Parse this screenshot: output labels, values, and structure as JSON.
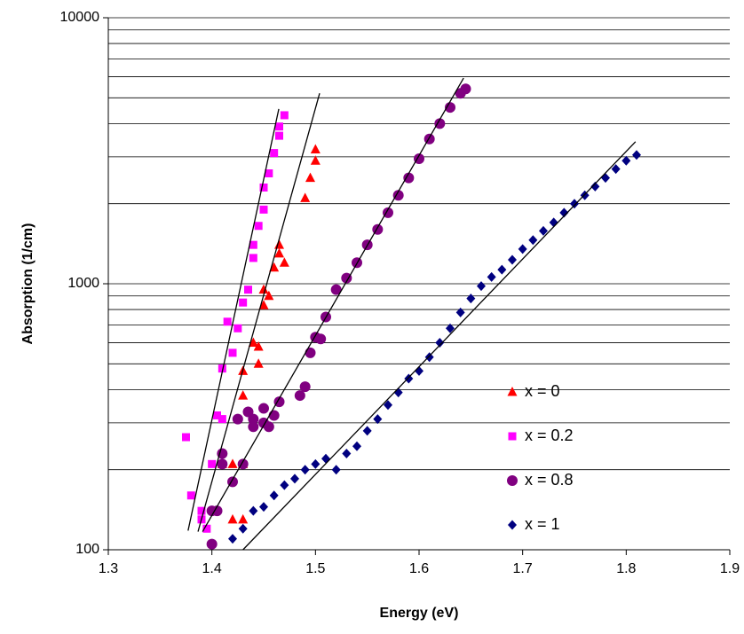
{
  "chart_data": {
    "type": "scatter",
    "x_label": "Energy (eV)",
    "y_label": "Absorption (1/cm)",
    "xlim": [
      1.3,
      1.9
    ],
    "xticks": [
      1.3,
      1.4,
      1.5,
      1.6,
      1.7,
      1.8,
      1.9
    ],
    "ylim": [
      100,
      10000
    ],
    "yticks": [
      100,
      1000,
      10000
    ],
    "log_y": true,
    "grid": true,
    "minor_grid": true,
    "legend_position": "lower right",
    "series": [
      {
        "name": "x = 0",
        "color": "#ff0000",
        "marker": "triangle",
        "x": [
          1.42,
          1.43,
          1.41,
          1.42,
          1.43,
          1.43,
          1.43,
          1.44,
          1.445,
          1.445,
          1.45,
          1.45,
          1.455,
          1.46,
          1.465,
          1.465,
          1.47,
          1.49,
          1.495,
          1.5,
          1.5
        ],
        "values": [
          130,
          130,
          210,
          210,
          210,
          380,
          470,
          600,
          580,
          500,
          830,
          950,
          900,
          1150,
          1300,
          1400,
          1200,
          2100,
          2500,
          2900,
          3200
        ]
      },
      {
        "name": "x = 0.2",
        "color": "#ff00ff",
        "marker": "square",
        "x": [
          1.375,
          1.38,
          1.39,
          1.395,
          1.39,
          1.4,
          1.405,
          1.41,
          1.41,
          1.415,
          1.42,
          1.425,
          1.43,
          1.435,
          1.44,
          1.44,
          1.445,
          1.45,
          1.45,
          1.455,
          1.46,
          1.465,
          1.465,
          1.47
        ],
        "values": [
          265,
          160,
          140,
          120,
          130,
          210,
          320,
          310,
          480,
          720,
          550,
          680,
          850,
          950,
          1250,
          1400,
          1650,
          1900,
          2300,
          2600,
          3100,
          3600,
          3900,
          4300
        ]
      },
      {
        "name": "x = 0.8",
        "color": "#800080",
        "marker": "circle",
        "x": [
          1.4,
          1.4,
          1.405,
          1.41,
          1.41,
          1.42,
          1.425,
          1.43,
          1.435,
          1.44,
          1.44,
          1.45,
          1.45,
          1.455,
          1.46,
          1.465,
          1.485,
          1.49,
          1.495,
          1.5,
          1.505,
          1.51,
          1.52,
          1.53,
          1.54,
          1.55,
          1.56,
          1.57,
          1.58,
          1.59,
          1.6,
          1.61,
          1.62,
          1.63,
          1.64,
          1.645
        ],
        "values": [
          105,
          140,
          140,
          210,
          230,
          180,
          310,
          210,
          330,
          310,
          290,
          300,
          340,
          290,
          320,
          360,
          380,
          410,
          550,
          630,
          620,
          750,
          950,
          1050,
          1200,
          1400,
          1600,
          1850,
          2150,
          2500,
          2950,
          3500,
          4000,
          4600,
          5200,
          5400
        ]
      },
      {
        "name": "x = 1",
        "color": "#000080",
        "marker": "diamond",
        "x": [
          1.42,
          1.43,
          1.44,
          1.45,
          1.46,
          1.47,
          1.48,
          1.49,
          1.5,
          1.51,
          1.52,
          1.53,
          1.54,
          1.55,
          1.56,
          1.57,
          1.58,
          1.59,
          1.6,
          1.61,
          1.62,
          1.63,
          1.64,
          1.65,
          1.66,
          1.67,
          1.68,
          1.69,
          1.7,
          1.71,
          1.72,
          1.73,
          1.74,
          1.75,
          1.76,
          1.77,
          1.78,
          1.79,
          1.8,
          1.81
        ],
        "values": [
          110,
          120,
          140,
          145,
          160,
          175,
          185,
          200,
          210,
          220,
          200,
          230,
          245,
          280,
          310,
          350,
          390,
          440,
          470,
          530,
          600,
          680,
          780,
          880,
          980,
          1060,
          1130,
          1230,
          1350,
          1460,
          1580,
          1700,
          1850,
          2000,
          2150,
          2320,
          2500,
          2700,
          2900,
          3050
        ]
      }
    ],
    "fit_lines": [
      {
        "color": "#000000",
        "x": [
          1.3866,
          1.504
        ],
        "values": [
          117,
          5200
        ]
      },
      {
        "color": "#000000",
        "x": [
          1.377,
          1.4646
        ],
        "values": [
          118,
          4540
        ]
      },
      {
        "color": "#000000",
        "x": [
          1.391,
          1.643
        ],
        "values": [
          117,
          5930
        ]
      },
      {
        "color": "#000000",
        "x": [
          1.43,
          1.809
        ],
        "values": [
          100,
          3420
        ]
      }
    ]
  }
}
